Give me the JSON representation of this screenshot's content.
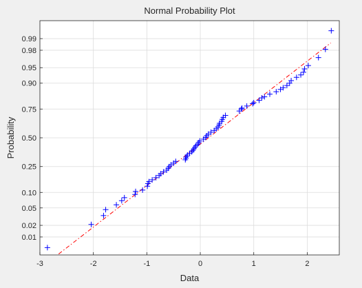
{
  "chart_data": {
    "type": "scatter",
    "title": "Normal Probability Plot",
    "xlabel": "Data",
    "ylabel": "Probability",
    "xlim": [
      -3,
      2.6
    ],
    "x_ticks": [
      -3,
      -2,
      -1,
      0,
      1,
      2
    ],
    "x_tick_labels": [
      "-3",
      "-2",
      "-1",
      "0",
      "1",
      "2"
    ],
    "y_scale": "normal-probability",
    "ylim": [
      0.003,
      0.997
    ],
    "y_ticks": [
      0.01,
      0.02,
      0.05,
      0.1,
      0.25,
      0.5,
      0.75,
      0.9,
      0.95,
      0.98,
      0.99
    ],
    "y_tick_labels": [
      "0.01",
      "0.02",
      "0.05",
      "0.10",
      "0.25",
      "0.50",
      "0.75",
      "0.90",
      "0.95",
      "0.98",
      "0.99"
    ],
    "grid": true,
    "series": [
      {
        "marker": "+",
        "color": "#0000ff",
        "points": [
          [
            -2.86,
            0.005
          ],
          [
            -2.04,
            0.021
          ],
          [
            -1.81,
            0.034
          ],
          [
            -1.77,
            0.046
          ],
          [
            -1.57,
            0.058
          ],
          [
            -1.47,
            0.07
          ],
          [
            -1.42,
            0.08
          ],
          [
            -1.22,
            0.092
          ],
          [
            -1.21,
            0.104
          ],
          [
            -1.08,
            0.11
          ],
          [
            -0.99,
            0.128
          ],
          [
            -0.98,
            0.141
          ],
          [
            -0.96,
            0.152
          ],
          [
            -0.9,
            0.162
          ],
          [
            -0.83,
            0.175
          ],
          [
            -0.77,
            0.188
          ],
          [
            -0.74,
            0.2
          ],
          [
            -0.69,
            0.212
          ],
          [
            -0.63,
            0.224
          ],
          [
            -0.6,
            0.237
          ],
          [
            -0.58,
            0.25
          ],
          [
            -0.55,
            0.263
          ],
          [
            -0.5,
            0.276
          ],
          [
            -0.46,
            0.29
          ],
          [
            -0.28,
            0.303
          ],
          [
            -0.27,
            0.316
          ],
          [
            -0.26,
            0.33
          ],
          [
            -0.24,
            0.343
          ],
          [
            -0.2,
            0.357
          ],
          [
            -0.16,
            0.371
          ],
          [
            -0.14,
            0.384
          ],
          [
            -0.12,
            0.398
          ],
          [
            -0.1,
            0.412
          ],
          [
            -0.08,
            0.426
          ],
          [
            -0.05,
            0.44
          ],
          [
            -0.03,
            0.455
          ],
          [
            -0.01,
            0.47
          ],
          [
            0.06,
            0.487
          ],
          [
            0.1,
            0.503
          ],
          [
            0.12,
            0.519
          ],
          [
            0.15,
            0.535
          ],
          [
            0.2,
            0.552
          ],
          [
            0.26,
            0.568
          ],
          [
            0.3,
            0.584
          ],
          [
            0.33,
            0.6
          ],
          [
            0.35,
            0.617
          ],
          [
            0.36,
            0.633
          ],
          [
            0.4,
            0.65
          ],
          [
            0.41,
            0.667
          ],
          [
            0.43,
            0.684
          ],
          [
            0.47,
            0.7
          ],
          [
            0.73,
            0.735
          ],
          [
            0.77,
            0.75
          ],
          [
            0.78,
            0.757
          ],
          [
            0.87,
            0.772
          ],
          [
            0.98,
            0.788
          ],
          [
            1.0,
            0.795
          ],
          [
            1.1,
            0.81
          ],
          [
            1.15,
            0.825
          ],
          [
            1.2,
            0.832
          ],
          [
            1.3,
            0.847
          ],
          [
            1.42,
            0.86
          ],
          [
            1.5,
            0.872
          ],
          [
            1.55,
            0.88
          ],
          [
            1.62,
            0.89
          ],
          [
            1.67,
            0.9
          ],
          [
            1.7,
            0.91
          ],
          [
            1.8,
            0.922
          ],
          [
            1.88,
            0.93
          ],
          [
            1.93,
            0.938
          ],
          [
            1.95,
            0.947
          ],
          [
            2.02,
            0.955
          ],
          [
            2.21,
            0.97
          ],
          [
            2.34,
            0.981
          ],
          [
            2.45,
            0.994
          ]
        ]
      },
      {
        "kind": "line",
        "style": "dash-dot",
        "color": "#ff0000",
        "x": [
          -2.65,
          2.44
        ],
        "y": [
          0.0032,
          0.987
        ]
      }
    ]
  }
}
